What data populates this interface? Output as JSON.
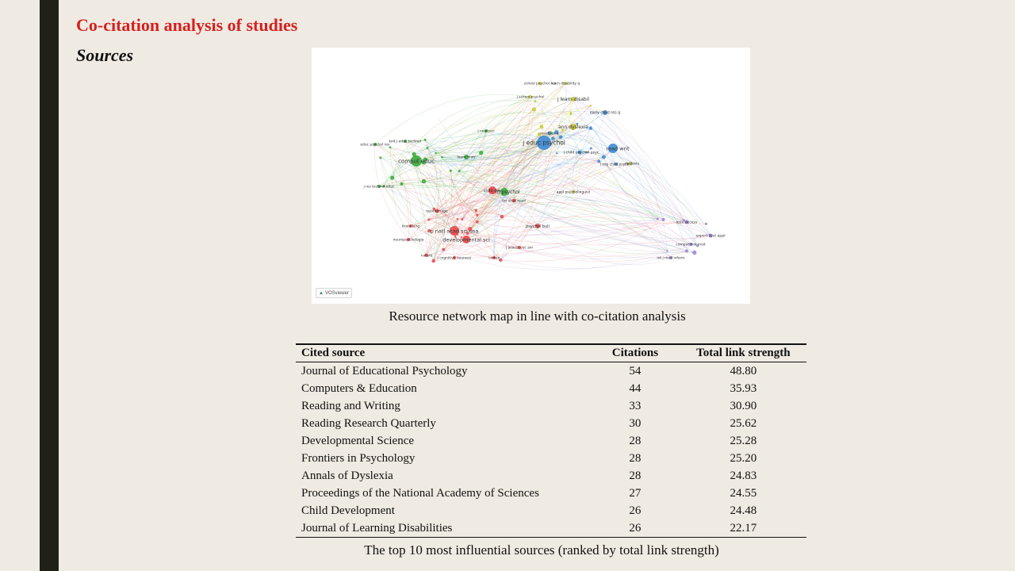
{
  "slide": {
    "title": "Co-citation analysis of studies",
    "subtitle": "Sources",
    "accent_color": "#d71f1f"
  },
  "figure": {
    "caption": "Resource network map in line with co-citation analysis",
    "logo_text": "VOSviewer",
    "clusters": {
      "red": "#e8474a",
      "green": "#3aa83a",
      "blue": "#3b8bd6",
      "yellow": "#c9c934",
      "purple": "#9a7fd1"
    },
    "labels": {
      "j_educ_psychol": "j educ psychol",
      "comput_educ": "comput educ",
      "read_writ": "read writ",
      "ann_dyslexia": "ann dyslexia",
      "j_learn_disabil": "j learn disabil",
      "p_natl_acad_sci_usa": "p natl acad sci usa",
      "developmental_sci": "developmental sci",
      "front_psychol": "front psychol",
      "child_dev": "child dev",
      "early_child_res_q": "early child res q",
      "dyslexia": "dyslexia",
      "j_exp_child_psychol": "j exp child psychol",
      "res_q_read": "read res q",
      "j_child_psychol_psyc": "j child psychol psyc",
      "brit_j_educ_technol": "brit j educ technol",
      "educ_psychol_rev": "educ psychol rev",
      "learn_instr": "learn instr",
      "j_res_technol_educ": "j res technol educ",
      "school_psychol_rev": "school psychol rev",
      "learn_disability_q": "learn disability q",
      "j_school_psychol": "j school psychol",
      "neuroimage": "neuroimage",
      "psychol_bull": "psychol bull",
      "j_cognitive_neurosci": "j cognitive neurosci",
      "cortex": "cortex",
      "brain_lang": "brain lang",
      "neuropsychologia": "neuropsychologia",
      "sci_stud_read": "sci stud read",
      "appl_psycholinguist": "appl psycholinguist",
      "j_acoust_soc_am": "j acoust soc am",
      "ieee_access": "ieee access",
      "int_j_med_inform": "int j med inform",
      "comput_biol_med": "comput biol med",
      "expert_syst_appl": "expert syst appl",
      "j_neurosci": "j neurosci",
      "nature": "nature"
    }
  },
  "table": {
    "headers": [
      "Cited source",
      "Citations",
      "Total link strength"
    ],
    "rows": [
      [
        "Journal of Educational Psychology",
        "54",
        "48.80"
      ],
      [
        "Computers & Education",
        "44",
        "35.93"
      ],
      [
        "Reading and Writing",
        "33",
        "30.90"
      ],
      [
        "Reading Research Quarterly",
        "30",
        "25.62"
      ],
      [
        "Developmental Science",
        "28",
        "25.28"
      ],
      [
        "Frontiers in Psychology",
        "28",
        "25.20"
      ],
      [
        "Annals of Dyslexia",
        "28",
        "24.83"
      ],
      [
        "Proceedings of the National Academy of Sciences",
        "27",
        "24.55"
      ],
      [
        "Child Development",
        "26",
        "24.48"
      ],
      [
        "Journal of Learning Disabilities",
        "26",
        "22.17"
      ]
    ],
    "caption": "The top 10 most influential sources (ranked by total link strength)"
  }
}
